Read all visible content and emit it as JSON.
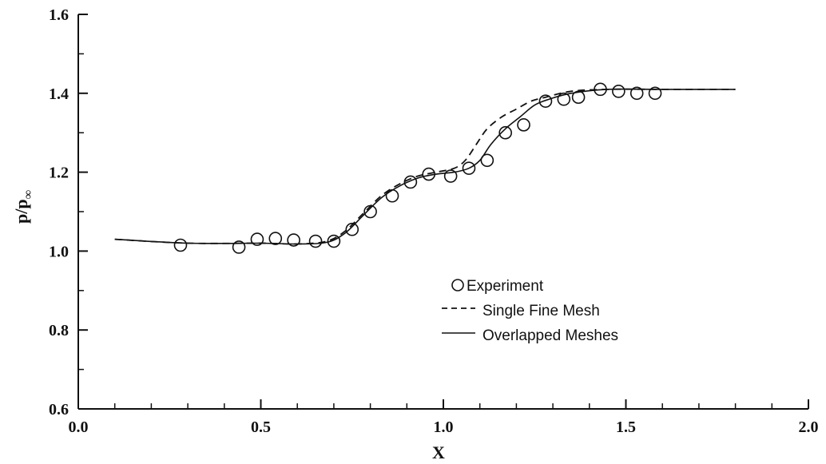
{
  "chart_data": {
    "type": "line",
    "title": "",
    "xlabel": "X",
    "ylabel": "p/p∞",
    "ylabel_main": "p/p",
    "ylabel_sub": "∞",
    "xlim": [
      0.0,
      2.0
    ],
    "ylim": [
      0.6,
      1.6
    ],
    "x_ticks": [
      0.0,
      0.5,
      1.0,
      1.5,
      2.0
    ],
    "x_tick_labels": [
      "0.0",
      "0.5",
      "1.0",
      "1.5",
      "2.0"
    ],
    "y_ticks": [
      0.6,
      0.8,
      1.0,
      1.2,
      1.4,
      1.6
    ],
    "y_tick_labels": [
      "0.6",
      "0.8",
      "1.0",
      "1.2",
      "1.4",
      "1.6"
    ],
    "grid": false,
    "legend_position": "lower-right",
    "series": [
      {
        "name": "Experiment",
        "style": "open-circle",
        "x": [
          0.28,
          0.44,
          0.49,
          0.54,
          0.59,
          0.65,
          0.7,
          0.75,
          0.8,
          0.86,
          0.91,
          0.96,
          1.02,
          1.07,
          1.12,
          1.17,
          1.22,
          1.28,
          1.33,
          1.37,
          1.43,
          1.48,
          1.53,
          1.58
        ],
        "y": [
          1.015,
          1.01,
          1.03,
          1.032,
          1.028,
          1.025,
          1.025,
          1.055,
          1.1,
          1.14,
          1.175,
          1.195,
          1.19,
          1.21,
          1.23,
          1.3,
          1.32,
          1.38,
          1.385,
          1.39,
          1.41,
          1.405,
          1.4,
          1.4
        ]
      },
      {
        "name": "Single Fine Mesh",
        "style": "dashed",
        "x": [
          0.1,
          0.3,
          0.5,
          0.6,
          0.68,
          0.73,
          0.78,
          0.83,
          0.88,
          0.93,
          0.98,
          1.03,
          1.06,
          1.09,
          1.12,
          1.16,
          1.2,
          1.24,
          1.28,
          1.35,
          1.45,
          1.6,
          1.8
        ],
        "y": [
          1.03,
          1.02,
          1.02,
          1.018,
          1.025,
          1.05,
          1.095,
          1.14,
          1.17,
          1.19,
          1.2,
          1.21,
          1.23,
          1.27,
          1.31,
          1.34,
          1.36,
          1.38,
          1.39,
          1.405,
          1.41,
          1.41,
          1.41
        ]
      },
      {
        "name": "Overlapped Meshes",
        "style": "solid",
        "x": [
          0.1,
          0.3,
          0.5,
          0.6,
          0.68,
          0.73,
          0.78,
          0.83,
          0.88,
          0.93,
          0.98,
          1.03,
          1.07,
          1.1,
          1.13,
          1.17,
          1.21,
          1.25,
          1.29,
          1.35,
          1.45,
          1.6,
          1.8
        ],
        "y": [
          1.03,
          1.02,
          1.02,
          1.018,
          1.022,
          1.045,
          1.09,
          1.135,
          1.165,
          1.185,
          1.195,
          1.2,
          1.21,
          1.23,
          1.27,
          1.31,
          1.34,
          1.37,
          1.385,
          1.4,
          1.41,
          1.41,
          1.41
        ]
      }
    ]
  }
}
